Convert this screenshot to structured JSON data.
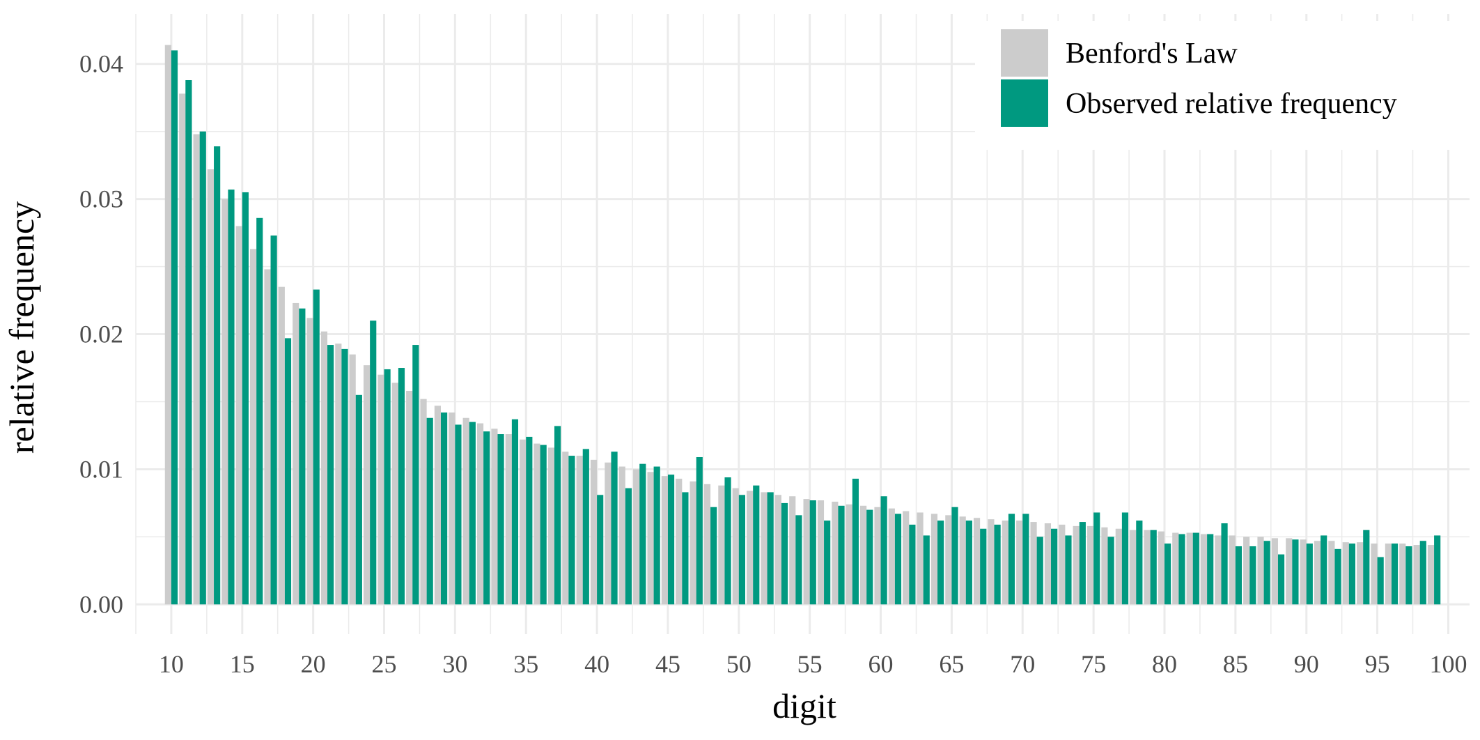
{
  "chart_data": {
    "type": "bar",
    "xlabel": "digit",
    "ylabel": "relative frequency",
    "xlim": [
      7.5,
      101.5
    ],
    "ylim": [
      -0.0022,
      0.0437
    ],
    "x_ticks": [
      10,
      15,
      20,
      25,
      30,
      35,
      40,
      45,
      50,
      55,
      60,
      65,
      70,
      75,
      80,
      85,
      90,
      95,
      100
    ],
    "x_tick_labels": [
      "10",
      "15",
      "20",
      "25",
      "30",
      "35",
      "40",
      "45",
      "50",
      "55",
      "60",
      "65",
      "70",
      "75",
      "80",
      "85",
      "90",
      "95",
      "100"
    ],
    "y_ticks": [
      0,
      0.01,
      0.02,
      0.03,
      0.04
    ],
    "y_tick_labels": [
      "0.00",
      "0.01",
      "0.02",
      "0.03",
      "0.04"
    ],
    "grid": true,
    "legend_position": "top-right",
    "x": [
      10,
      11,
      12,
      13,
      14,
      15,
      16,
      17,
      18,
      19,
      20,
      21,
      22,
      23,
      24,
      25,
      26,
      27,
      28,
      29,
      30,
      31,
      32,
      33,
      34,
      35,
      36,
      37,
      38,
      39,
      40,
      41,
      42,
      43,
      44,
      45,
      46,
      47,
      48,
      49,
      50,
      51,
      52,
      53,
      54,
      55,
      56,
      57,
      58,
      59,
      60,
      61,
      62,
      63,
      64,
      65,
      66,
      67,
      68,
      69,
      70,
      71,
      72,
      73,
      74,
      75,
      76,
      77,
      78,
      79,
      80,
      81,
      82,
      83,
      84,
      85,
      86,
      87,
      88,
      89,
      90,
      91,
      92,
      93,
      94,
      95,
      96,
      97,
      98,
      99
    ],
    "series": [
      {
        "name": "Benford's Law",
        "color": "#cccccc",
        "values": [
          0.0414,
          0.0378,
          0.0348,
          0.0322,
          0.03,
          0.028,
          0.0263,
          0.0248,
          0.0235,
          0.0223,
          0.0212,
          0.0202,
          0.0193,
          0.0185,
          0.0177,
          0.017,
          0.0164,
          0.0158,
          0.0152,
          0.0147,
          0.0142,
          0.0138,
          0.0134,
          0.013,
          0.0126,
          0.0122,
          0.0119,
          0.0116,
          0.0113,
          0.011,
          0.0107,
          0.0105,
          0.0102,
          0.01,
          0.0098,
          0.0095,
          0.0093,
          0.0091,
          0.0089,
          0.0088,
          0.0086,
          0.0084,
          0.0083,
          0.0081,
          0.008,
          0.0078,
          0.0077,
          0.0076,
          0.0074,
          0.0073,
          0.0072,
          0.0071,
          0.0069,
          0.0068,
          0.0067,
          0.0066,
          0.0065,
          0.0064,
          0.0063,
          0.0062,
          0.0062,
          0.0061,
          0.006,
          0.0059,
          0.0058,
          0.0058,
          0.0057,
          0.0056,
          0.0055,
          0.0055,
          0.0054,
          0.0053,
          0.0053,
          0.0052,
          0.0051,
          0.0051,
          0.005,
          0.005,
          0.0049,
          0.0049,
          0.0048,
          0.0047,
          0.0047,
          0.0046,
          0.0046,
          0.0045,
          0.0045,
          0.0045,
          0.0044,
          0.0044
        ]
      },
      {
        "name": "Observed relative frequency",
        "color": "#009980",
        "values": [
          0.041,
          0.0388,
          0.035,
          0.0339,
          0.0307,
          0.0305,
          0.0286,
          0.0273,
          0.0197,
          0.0219,
          0.0233,
          0.0192,
          0.0189,
          0.0155,
          0.021,
          0.0174,
          0.0175,
          0.0192,
          0.0138,
          0.0142,
          0.0133,
          0.0135,
          0.0128,
          0.0126,
          0.0137,
          0.0124,
          0.0118,
          0.0132,
          0.011,
          0.0115,
          0.0081,
          0.0113,
          0.0086,
          0.0104,
          0.0102,
          0.0096,
          0.0083,
          0.0109,
          0.0072,
          0.0094,
          0.0081,
          0.0088,
          0.0083,
          0.0075,
          0.0066,
          0.0077,
          0.0062,
          0.0073,
          0.0093,
          0.007,
          0.008,
          0.0067,
          0.0059,
          0.0051,
          0.0062,
          0.0072,
          0.0062,
          0.0056,
          0.0059,
          0.0067,
          0.0067,
          0.005,
          0.0056,
          0.0051,
          0.0061,
          0.0068,
          0.005,
          0.0068,
          0.0062,
          0.0055,
          0.0045,
          0.0052,
          0.0053,
          0.0052,
          0.006,
          0.0043,
          0.0043,
          0.0047,
          0.0037,
          0.0048,
          0.0045,
          0.0051,
          0.0041,
          0.0045,
          0.0055,
          0.0035,
          0.0045,
          0.0043,
          0.0047,
          0.0051
        ]
      }
    ]
  }
}
